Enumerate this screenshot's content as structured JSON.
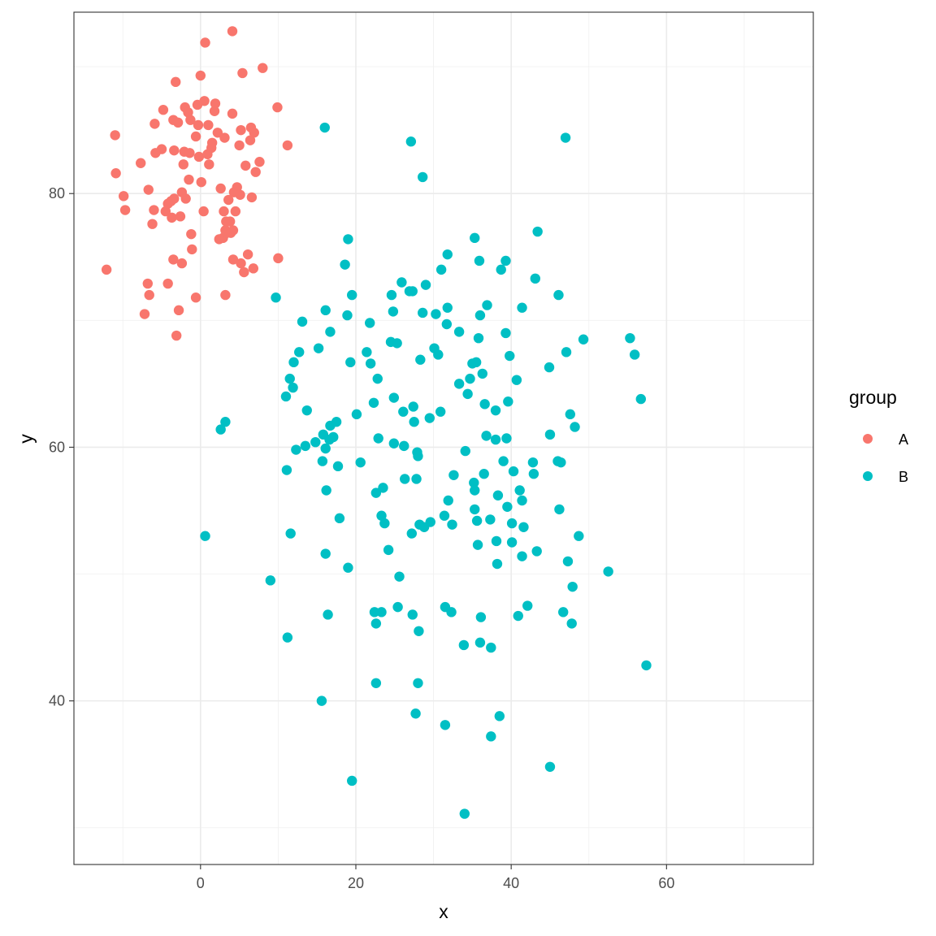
{
  "chart_data": {
    "type": "scatter",
    "title": "",
    "xlabel": "x",
    "ylabel": "y",
    "xlim": [
      -16.3,
      78.9
    ],
    "ylim": [
      27.1,
      94.3
    ],
    "x_ticks": [
      0,
      20,
      40,
      60
    ],
    "y_ticks": [
      40,
      60,
      80
    ],
    "x_tick_labels": [
      "0",
      "20",
      "40",
      "60"
    ],
    "y_tick_labels": [
      "40",
      "60",
      "80"
    ],
    "grid": true,
    "legend": {
      "title": "group",
      "position": "right"
    },
    "colors": {
      "A": "#F8766D",
      "B": "#00BFC4"
    },
    "series": [
      {
        "name": "A",
        "points": [
          [
            -12.1,
            74.0
          ],
          [
            -11.0,
            84.6
          ],
          [
            -10.9,
            81.6
          ],
          [
            -9.9,
            79.8
          ],
          [
            -9.7,
            78.7
          ],
          [
            -7.7,
            82.4
          ],
          [
            -7.2,
            70.5
          ],
          [
            -6.8,
            72.9
          ],
          [
            -6.7,
            80.3
          ],
          [
            -6.6,
            72.0
          ],
          [
            -6.2,
            77.6
          ],
          [
            -6.0,
            78.7
          ],
          [
            -5.9,
            85.5
          ],
          [
            -5.8,
            83.2
          ],
          [
            -5.0,
            83.5
          ],
          [
            -4.8,
            86.6
          ],
          [
            -4.5,
            78.6
          ],
          [
            -4.2,
            72.9
          ],
          [
            -4.2,
            79.2
          ],
          [
            -3.8,
            79.4
          ],
          [
            -3.7,
            78.1
          ],
          [
            -3.5,
            74.8
          ],
          [
            -3.4,
            79.6
          ],
          [
            -3.5,
            85.8
          ],
          [
            -3.4,
            83.4
          ],
          [
            -3.2,
            88.8
          ],
          [
            -3.1,
            68.8
          ],
          [
            -2.9,
            85.6
          ],
          [
            -2.8,
            70.8
          ],
          [
            -2.6,
            78.2
          ],
          [
            -2.4,
            74.5
          ],
          [
            -2.4,
            80.1
          ],
          [
            -2.2,
            82.3
          ],
          [
            -2.1,
            83.3
          ],
          [
            -2.0,
            86.8
          ],
          [
            -1.9,
            79.6
          ],
          [
            -1.6,
            86.4
          ],
          [
            -1.5,
            81.1
          ],
          [
            -1.4,
            83.2
          ],
          [
            -1.3,
            85.8
          ],
          [
            -1.2,
            76.8
          ],
          [
            -1.1,
            75.6
          ],
          [
            -0.6,
            84.5
          ],
          [
            -0.6,
            71.8
          ],
          [
            -0.4,
            87.0
          ],
          [
            -0.3,
            85.4
          ],
          [
            -0.2,
            82.9
          ],
          [
            0.0,
            89.3
          ],
          [
            0.1,
            80.9
          ],
          [
            0.4,
            78.6
          ],
          [
            0.6,
            91.9
          ],
          [
            0.5,
            87.3
          ],
          [
            0.9,
            83.1
          ],
          [
            1.0,
            85.4
          ],
          [
            1.1,
            82.3
          ],
          [
            1.4,
            83.6
          ],
          [
            1.5,
            84.0
          ],
          [
            1.8,
            86.5
          ],
          [
            1.9,
            87.1
          ],
          [
            2.2,
            84.8
          ],
          [
            2.4,
            76.4
          ],
          [
            2.6,
            80.4
          ],
          [
            2.9,
            76.5
          ],
          [
            3.0,
            78.6
          ],
          [
            3.1,
            84.4
          ],
          [
            3.2,
            77.1
          ],
          [
            3.3,
            77.8
          ],
          [
            3.2,
            72.0
          ],
          [
            3.4,
            76.9
          ],
          [
            3.6,
            79.5
          ],
          [
            3.8,
            77.8
          ],
          [
            3.9,
            76.9
          ],
          [
            4.2,
            77.1
          ],
          [
            4.1,
            92.8
          ],
          [
            4.1,
            86.3
          ],
          [
            4.2,
            74.8
          ],
          [
            4.5,
            78.6
          ],
          [
            4.3,
            80.1
          ],
          [
            4.7,
            80.5
          ],
          [
            5.0,
            83.8
          ],
          [
            5.1,
            79.9
          ],
          [
            5.2,
            85.0
          ],
          [
            5.2,
            74.5
          ],
          [
            5.4,
            89.5
          ],
          [
            5.6,
            73.8
          ],
          [
            5.8,
            82.2
          ],
          [
            6.1,
            75.2
          ],
          [
            6.4,
            84.2
          ],
          [
            6.5,
            85.2
          ],
          [
            6.6,
            79.7
          ],
          [
            6.8,
            74.1
          ],
          [
            6.9,
            84.8
          ],
          [
            7.1,
            81.7
          ],
          [
            7.6,
            82.5
          ],
          [
            8.0,
            89.9
          ],
          [
            9.9,
            86.8
          ],
          [
            10.0,
            74.9
          ],
          [
            11.2,
            83.8
          ]
        ]
      },
      {
        "name": "B",
        "points": [
          [
            0.6,
            53.0
          ],
          [
            2.6,
            61.4
          ],
          [
            3.2,
            62.0
          ],
          [
            9.0,
            49.5
          ],
          [
            9.7,
            71.8
          ],
          [
            11.0,
            64.0
          ],
          [
            11.1,
            58.2
          ],
          [
            11.2,
            45.0
          ],
          [
            11.5,
            65.4
          ],
          [
            11.6,
            53.2
          ],
          [
            11.9,
            64.7
          ],
          [
            12.0,
            66.7
          ],
          [
            12.3,
            59.8
          ],
          [
            12.7,
            67.5
          ],
          [
            13.1,
            69.9
          ],
          [
            13.5,
            60.1
          ],
          [
            13.7,
            62.9
          ],
          [
            14.8,
            60.4
          ],
          [
            15.2,
            67.8
          ],
          [
            15.6,
            40.0
          ],
          [
            15.7,
            58.9
          ],
          [
            15.8,
            61.0
          ],
          [
            16.0,
            85.2
          ],
          [
            16.1,
            59.9
          ],
          [
            16.1,
            70.8
          ],
          [
            16.1,
            51.6
          ],
          [
            16.2,
            56.6
          ],
          [
            16.4,
            46.8
          ],
          [
            16.6,
            60.6
          ],
          [
            16.7,
            69.1
          ],
          [
            16.7,
            61.7
          ],
          [
            17.1,
            60.8
          ],
          [
            17.5,
            62.0
          ],
          [
            17.7,
            58.5
          ],
          [
            17.9,
            54.4
          ],
          [
            18.6,
            74.4
          ],
          [
            18.9,
            70.4
          ],
          [
            19.0,
            50.5
          ],
          [
            19.0,
            76.4
          ],
          [
            19.3,
            66.7
          ],
          [
            19.5,
            72.0
          ],
          [
            19.5,
            33.7
          ],
          [
            20.1,
            62.6
          ],
          [
            20.6,
            58.8
          ],
          [
            21.4,
            67.5
          ],
          [
            21.8,
            69.8
          ],
          [
            21.9,
            66.6
          ],
          [
            22.3,
            63.5
          ],
          [
            22.4,
            47.0
          ],
          [
            22.6,
            41.4
          ],
          [
            22.6,
            46.1
          ],
          [
            22.6,
            56.4
          ],
          [
            22.8,
            65.4
          ],
          [
            22.9,
            60.7
          ],
          [
            23.3,
            47.0
          ],
          [
            23.3,
            54.6
          ],
          [
            23.5,
            56.8
          ],
          [
            23.7,
            54.0
          ],
          [
            24.2,
            51.9
          ],
          [
            24.5,
            68.3
          ],
          [
            24.6,
            72.0
          ],
          [
            24.8,
            70.7
          ],
          [
            24.9,
            63.9
          ],
          [
            24.9,
            60.3
          ],
          [
            25.3,
            68.2
          ],
          [
            25.4,
            47.4
          ],
          [
            25.6,
            49.8
          ],
          [
            25.9,
            73.0
          ],
          [
            26.1,
            62.8
          ],
          [
            26.2,
            60.1
          ],
          [
            26.3,
            57.5
          ],
          [
            26.9,
            72.3
          ],
          [
            27.1,
            84.1
          ],
          [
            27.3,
            72.3
          ],
          [
            27.3,
            46.8
          ],
          [
            27.2,
            53.2
          ],
          [
            27.4,
            63.2
          ],
          [
            27.5,
            62.0
          ],
          [
            27.7,
            39.0
          ],
          [
            27.8,
            57.5
          ],
          [
            27.9,
            59.6
          ],
          [
            28.0,
            59.3
          ],
          [
            28.0,
            41.4
          ],
          [
            28.1,
            45.5
          ],
          [
            28.2,
            53.9
          ],
          [
            28.3,
            66.9
          ],
          [
            28.6,
            81.3
          ],
          [
            28.6,
            70.6
          ],
          [
            28.8,
            53.7
          ],
          [
            29.0,
            72.8
          ],
          [
            29.5,
            62.3
          ],
          [
            29.6,
            54.1
          ],
          [
            30.1,
            67.8
          ],
          [
            30.3,
            70.5
          ],
          [
            30.6,
            67.3
          ],
          [
            30.9,
            62.8
          ],
          [
            31.0,
            74.0
          ],
          [
            31.4,
            54.6
          ],
          [
            31.5,
            47.4
          ],
          [
            31.5,
            38.1
          ],
          [
            31.8,
            75.2
          ],
          [
            31.8,
            71.0
          ],
          [
            31.7,
            69.7
          ],
          [
            31.9,
            55.8
          ],
          [
            32.3,
            47.0
          ],
          [
            32.4,
            53.9
          ],
          [
            32.6,
            57.8
          ],
          [
            33.3,
            65.0
          ],
          [
            33.3,
            69.1
          ],
          [
            33.9,
            44.4
          ],
          [
            34.1,
            59.7
          ],
          [
            34.4,
            64.2
          ],
          [
            34.0,
            31.1
          ],
          [
            34.7,
            65.4
          ],
          [
            35.0,
            66.6
          ],
          [
            35.2,
            57.2
          ],
          [
            35.3,
            76.5
          ],
          [
            35.3,
            56.6
          ],
          [
            35.3,
            55.1
          ],
          [
            35.5,
            66.7
          ],
          [
            35.6,
            54.2
          ],
          [
            35.7,
            52.3
          ],
          [
            35.8,
            68.6
          ],
          [
            35.9,
            74.7
          ],
          [
            36.0,
            70.4
          ],
          [
            36.0,
            44.6
          ],
          [
            36.1,
            46.6
          ],
          [
            36.3,
            65.8
          ],
          [
            36.5,
            57.9
          ],
          [
            36.6,
            63.4
          ],
          [
            36.8,
            60.9
          ],
          [
            36.9,
            71.2
          ],
          [
            37.3,
            54.3
          ],
          [
            37.4,
            44.2
          ],
          [
            37.4,
            37.2
          ],
          [
            38.0,
            62.9
          ],
          [
            38.0,
            60.6
          ],
          [
            38.1,
            52.6
          ],
          [
            38.2,
            50.8
          ],
          [
            38.3,
            56.2
          ],
          [
            38.5,
            38.8
          ],
          [
            38.7,
            74.0
          ],
          [
            39.0,
            58.9
          ],
          [
            39.3,
            74.7
          ],
          [
            39.3,
            69.0
          ],
          [
            39.4,
            60.7
          ],
          [
            39.6,
            63.6
          ],
          [
            39.5,
            55.3
          ],
          [
            39.8,
            67.2
          ],
          [
            40.1,
            54.0
          ],
          [
            40.1,
            52.5
          ],
          [
            40.3,
            58.1
          ],
          [
            40.7,
            65.3
          ],
          [
            40.9,
            46.7
          ],
          [
            41.1,
            56.6
          ],
          [
            41.4,
            55.8
          ],
          [
            41.4,
            71.0
          ],
          [
            41.4,
            51.4
          ],
          [
            41.6,
            53.7
          ],
          [
            42.1,
            47.5
          ],
          [
            42.8,
            58.8
          ],
          [
            42.9,
            57.9
          ],
          [
            43.1,
            73.3
          ],
          [
            43.3,
            51.8
          ],
          [
            43.4,
            77.0
          ],
          [
            44.9,
            66.3
          ],
          [
            45.0,
            61.0
          ],
          [
            45.0,
            34.8
          ],
          [
            46.0,
            58.9
          ],
          [
            46.1,
            72.0
          ],
          [
            46.2,
            55.1
          ],
          [
            46.4,
            58.8
          ],
          [
            46.7,
            47.0
          ],
          [
            47.0,
            84.4
          ],
          [
            47.1,
            67.5
          ],
          [
            47.3,
            51.0
          ],
          [
            47.6,
            62.6
          ],
          [
            47.8,
            46.1
          ],
          [
            47.9,
            49.0
          ],
          [
            48.2,
            61.6
          ],
          [
            48.7,
            53.0
          ],
          [
            49.3,
            68.5
          ],
          [
            52.5,
            50.2
          ],
          [
            55.3,
            68.6
          ],
          [
            55.9,
            67.3
          ],
          [
            56.7,
            63.8
          ],
          [
            57.4,
            42.8
          ]
        ]
      }
    ]
  }
}
